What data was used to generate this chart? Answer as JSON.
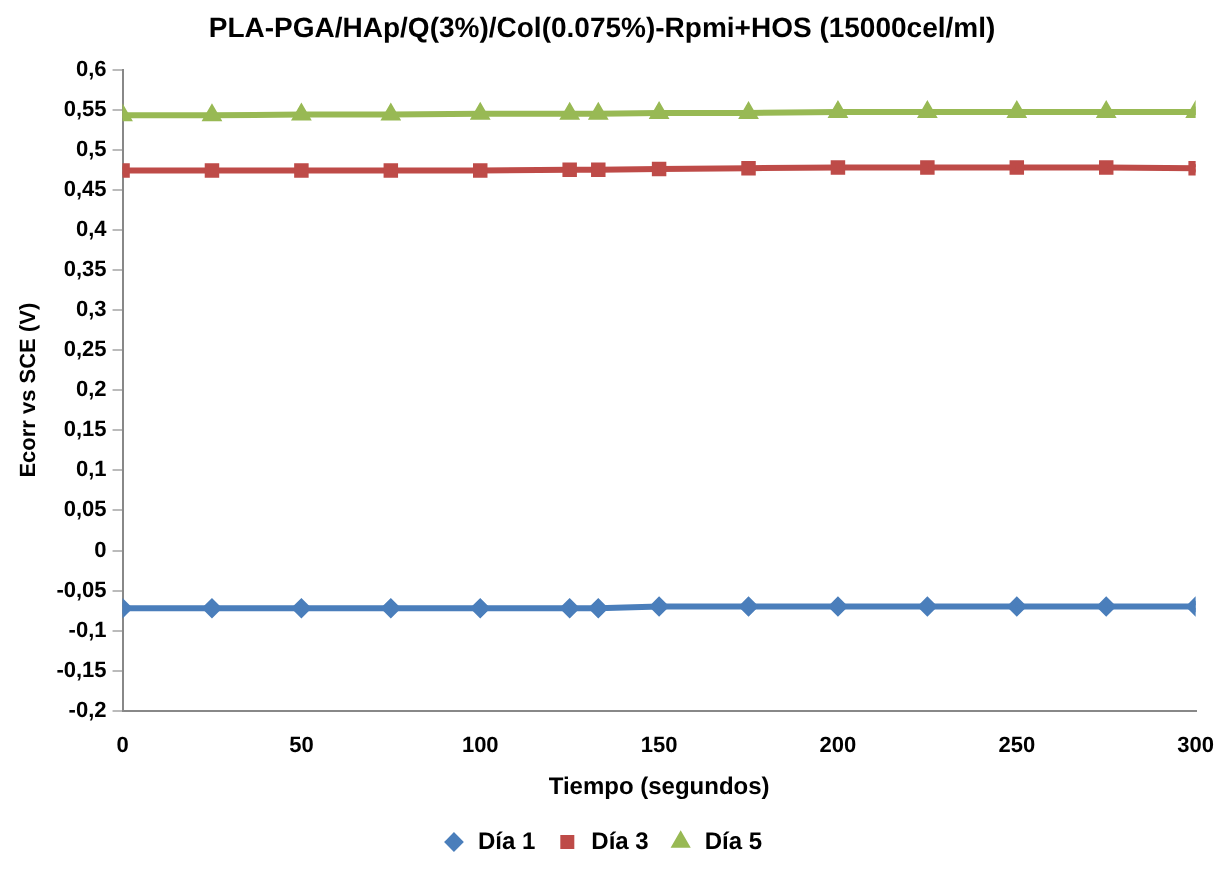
{
  "chart_data": {
    "type": "line",
    "title": "PLA-PGA/HAp/Q(3%)/Col(0.075%)-Rpmi+HOS (15000cel/ml)",
    "xlabel": "Tiempo (segundos)",
    "ylabel": "Ecorr vs SCE (V)",
    "x": [
      0,
      25,
      50,
      75,
      100,
      125,
      133,
      150,
      175,
      200,
      225,
      250,
      275,
      300
    ],
    "series": [
      {
        "name": "Día 1",
        "color": "#4a7ebb",
        "marker": "diamond",
        "values": [
          -0.072,
          -0.072,
          -0.072,
          -0.072,
          -0.072,
          -0.072,
          -0.072,
          -0.07,
          -0.07,
          -0.07,
          -0.07,
          -0.07,
          -0.07,
          -0.07
        ]
      },
      {
        "name": "Día 3",
        "color": "#be4b48",
        "marker": "square",
        "values": [
          0.474,
          0.474,
          0.474,
          0.474,
          0.474,
          0.475,
          0.475,
          0.476,
          0.477,
          0.478,
          0.478,
          0.478,
          0.478,
          0.477
        ]
      },
      {
        "name": "Día 5",
        "color": "#98b954",
        "marker": "triangle",
        "values": [
          0.543,
          0.543,
          0.544,
          0.544,
          0.545,
          0.545,
          0.545,
          0.546,
          0.546,
          0.547,
          0.547,
          0.547,
          0.547,
          0.547
        ]
      }
    ],
    "xlim": [
      0,
      300
    ],
    "xticks": [
      0,
      50,
      100,
      150,
      200,
      250,
      300
    ],
    "ylim": [
      -0.2,
      0.6
    ],
    "yticks": [
      {
        "value": -0.2,
        "label": "-0,2"
      },
      {
        "value": -0.15,
        "label": "-0,15"
      },
      {
        "value": -0.1,
        "label": "-0,1"
      },
      {
        "value": -0.05,
        "label": "-0,05"
      },
      {
        "value": 0,
        "label": "0"
      },
      {
        "value": 0.05,
        "label": "0,05"
      },
      {
        "value": 0.1,
        "label": "0,1"
      },
      {
        "value": 0.15,
        "label": "0,15"
      },
      {
        "value": 0.2,
        "label": "0,2"
      },
      {
        "value": 0.25,
        "label": "0,25"
      },
      {
        "value": 0.3,
        "label": "0,3"
      },
      {
        "value": 0.35,
        "label": "0,35"
      },
      {
        "value": 0.4,
        "label": "0,4"
      },
      {
        "value": 0.45,
        "label": "0,45"
      },
      {
        "value": 0.5,
        "label": "0,5"
      },
      {
        "value": 0.55,
        "label": "0,55"
      },
      {
        "value": 0.6,
        "label": "0,6"
      }
    ],
    "grid": false,
    "legend": "bottom"
  }
}
